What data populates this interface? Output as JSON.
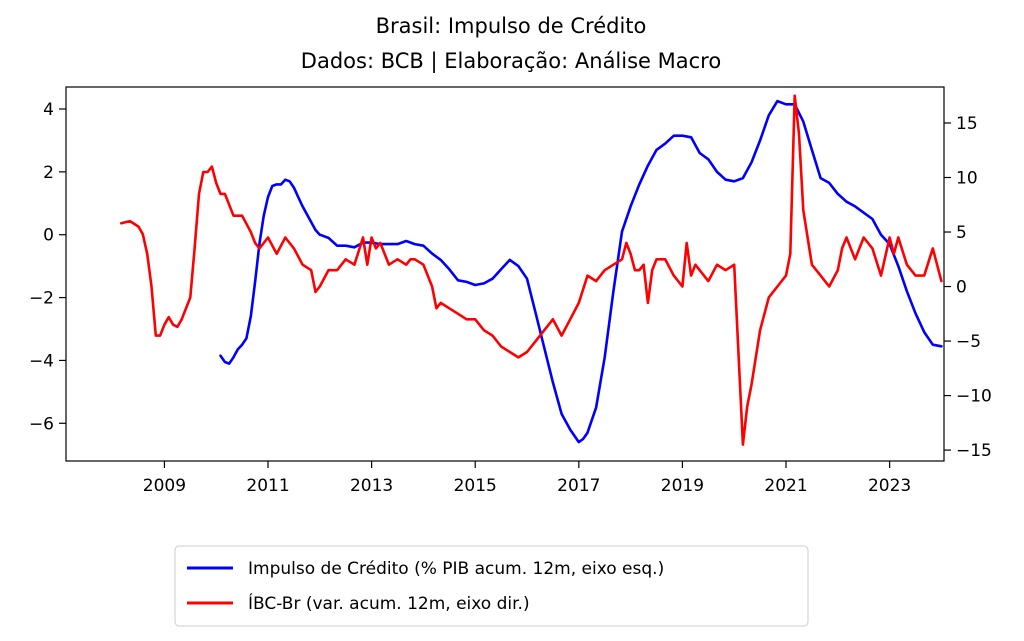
{
  "chart_data": {
    "type": "line",
    "title": "Brasil: Impulso de Crédito",
    "subtitle": "Dados: BCB | Elaboração: Análise Macro",
    "xlabel": "",
    "ylabel_left": "",
    "ylabel_right": "",
    "xlim": [
      2007.1,
      2024.05
    ],
    "ylim_left": [
      -7.2,
      4.7
    ],
    "ylim_right": [
      -16.0,
      18.3
    ],
    "x_ticks": [
      2009,
      2011,
      2013,
      2015,
      2017,
      2019,
      2021,
      2023
    ],
    "y_ticks_left": [
      4,
      2,
      0,
      -2,
      -4,
      -6
    ],
    "y_ticks_left_labels": [
      "4",
      "2",
      "0",
      "−2",
      "−4",
      "−6"
    ],
    "y_ticks_right": [
      15,
      10,
      5,
      0,
      -5,
      -10,
      -15
    ],
    "y_ticks_right_labels": [
      "15",
      "10",
      "5",
      "0",
      "−5",
      "−10",
      "−15"
    ],
    "grid": false,
    "legend_position": "bottom-center",
    "series": [
      {
        "name": "Impulso de Crédito (% PIB acum. 12m, eixo esq.)",
        "color": "#0000ff",
        "axis": "left",
        "x": [
          2010.083,
          2010.167,
          2010.25,
          2010.333,
          2010.417,
          2010.5,
          2010.583,
          2010.667,
          2010.75,
          2010.833,
          2010.917,
          2011.0,
          2011.083,
          2011.167,
          2011.25,
          2011.333,
          2011.417,
          2011.5,
          2011.583,
          2011.667,
          2011.75,
          2011.833,
          2011.917,
          2012.0,
          2012.167,
          2012.333,
          2012.5,
          2012.667,
          2012.833,
          2013.0,
          2013.167,
          2013.333,
          2013.5,
          2013.667,
          2013.833,
          2014.0,
          2014.167,
          2014.333,
          2014.5,
          2014.667,
          2014.833,
          2015.0,
          2015.167,
          2015.333,
          2015.5,
          2015.667,
          2015.833,
          2016.0,
          2016.167,
          2016.333,
          2016.5,
          2016.667,
          2016.833,
          2017.0,
          2017.083,
          2017.167,
          2017.333,
          2017.5,
          2017.667,
          2017.833,
          2018.0,
          2018.167,
          2018.333,
          2018.5,
          2018.667,
          2018.833,
          2019.0,
          2019.167,
          2019.333,
          2019.5,
          2019.667,
          2019.833,
          2020.0,
          2020.167,
          2020.333,
          2020.5,
          2020.667,
          2020.833,
          2021.0,
          2021.167,
          2021.333,
          2021.5,
          2021.667,
          2021.833,
          2022.0,
          2022.167,
          2022.333,
          2022.5,
          2022.667,
          2022.833,
          2023.0,
          2023.167,
          2023.333,
          2023.5,
          2023.667,
          2023.833,
          2024.0
        ],
        "y": [
          -3.85,
          -4.05,
          -4.1,
          -3.9,
          -3.65,
          -3.5,
          -3.3,
          -2.6,
          -1.5,
          -0.3,
          0.6,
          1.2,
          1.55,
          1.6,
          1.6,
          1.75,
          1.7,
          1.5,
          1.2,
          0.9,
          0.65,
          0.4,
          0.15,
          0.0,
          -0.1,
          -0.35,
          -0.35,
          -0.4,
          -0.25,
          -0.25,
          -0.3,
          -0.3,
          -0.3,
          -0.2,
          -0.3,
          -0.35,
          -0.6,
          -0.8,
          -1.1,
          -1.45,
          -1.5,
          -1.6,
          -1.55,
          -1.4,
          -1.1,
          -0.8,
          -1.0,
          -1.4,
          -2.5,
          -3.6,
          -4.7,
          -5.7,
          -6.2,
          -6.6,
          -6.5,
          -6.3,
          -5.5,
          -3.9,
          -1.8,
          0.1,
          0.9,
          1.6,
          2.2,
          2.7,
          2.9,
          3.15,
          3.15,
          3.1,
          2.6,
          2.4,
          2.0,
          1.75,
          1.7,
          1.8,
          2.3,
          3.0,
          3.8,
          4.25,
          4.15,
          4.15,
          3.6,
          2.7,
          1.8,
          1.65,
          1.3,
          1.05,
          0.9,
          0.7,
          0.5,
          0.0,
          -0.3,
          -1.0,
          -1.8,
          -2.5,
          -3.1,
          -3.5,
          -3.55
        ]
      },
      {
        "name": "ÍBC-Br (var. acum. 12m, eixo dir.)",
        "color": "#ff0000",
        "axis": "right",
        "x": [
          2008.167,
          2008.333,
          2008.5,
          2008.583,
          2008.667,
          2008.75,
          2008.833,
          2008.917,
          2009.0,
          2009.083,
          2009.167,
          2009.25,
          2009.333,
          2009.5,
          2009.583,
          2009.667,
          2009.75,
          2009.833,
          2009.917,
          2010.0,
          2010.083,
          2010.167,
          2010.25,
          2010.333,
          2010.5,
          2010.667,
          2010.75,
          2010.833,
          2011.0,
          2011.167,
          2011.333,
          2011.5,
          2011.667,
          2011.833,
          2011.917,
          2012.0,
          2012.167,
          2012.333,
          2012.5,
          2012.667,
          2012.833,
          2012.917,
          2013.0,
          2013.083,
          2013.167,
          2013.25,
          2013.333,
          2013.5,
          2013.667,
          2013.75,
          2013.833,
          2014.0,
          2014.167,
          2014.25,
          2014.333,
          2014.5,
          2014.667,
          2014.833,
          2015.0,
          2015.167,
          2015.333,
          2015.5,
          2015.667,
          2015.833,
          2016.0,
          2016.167,
          2016.333,
          2016.5,
          2016.667,
          2016.833,
          2017.0,
          2017.167,
          2017.333,
          2017.5,
          2017.667,
          2017.833,
          2017.917,
          2018.0,
          2018.083,
          2018.167,
          2018.25,
          2018.333,
          2018.417,
          2018.5,
          2018.667,
          2018.833,
          2019.0,
          2019.083,
          2019.167,
          2019.25,
          2019.333,
          2019.5,
          2019.667,
          2019.833,
          2020.0,
          2020.167,
          2020.25,
          2020.333,
          2020.5,
          2020.667,
          2020.833,
          2021.0,
          2021.083,
          2021.167,
          2021.25,
          2021.333,
          2021.5,
          2021.667,
          2021.833,
          2022.0,
          2022.083,
          2022.167,
          2022.333,
          2022.5,
          2022.667,
          2022.833,
          2023.0,
          2023.083,
          2023.167,
          2023.333,
          2023.5,
          2023.667,
          2023.833,
          2024.0
        ],
        "y": [
          5.8,
          6.0,
          5.5,
          4.8,
          3.0,
          0.0,
          -4.5,
          -4.5,
          -3.5,
          -2.8,
          -3.5,
          -3.7,
          -3.0,
          -1.0,
          3.5,
          8.5,
          10.5,
          10.5,
          11.0,
          9.5,
          8.5,
          8.5,
          7.5,
          6.5,
          6.5,
          5.0,
          4.0,
          3.5,
          4.5,
          3.0,
          4.5,
          3.5,
          2.0,
          1.5,
          -0.5,
          0.0,
          1.5,
          1.5,
          2.5,
          2.0,
          4.5,
          2.0,
          4.5,
          3.5,
          4.0,
          3.0,
          2.0,
          2.5,
          2.0,
          2.5,
          2.5,
          2.0,
          0.0,
          -2.0,
          -1.5,
          -2.0,
          -2.5,
          -3.0,
          -3.0,
          -4.0,
          -4.5,
          -5.5,
          -6.0,
          -6.5,
          -6.0,
          -5.0,
          -4.0,
          -3.0,
          -4.5,
          -3.0,
          -1.5,
          1.0,
          0.5,
          1.5,
          2.0,
          2.5,
          4.0,
          3.0,
          1.5,
          1.5,
          2.0,
          -1.5,
          1.5,
          2.5,
          2.5,
          1.0,
          0.0,
          4.0,
          1.0,
          2.0,
          1.5,
          0.5,
          2.0,
          1.5,
          2.0,
          -14.5,
          -11.0,
          -9.0,
          -4.0,
          -1.0,
          0.0,
          1.0,
          3.0,
          17.5,
          14.0,
          7.0,
          2.0,
          1.0,
          0.0,
          1.5,
          3.5,
          4.5,
          2.5,
          4.5,
          3.5,
          1.0,
          4.5,
          3.0,
          4.5,
          2.0,
          1.0,
          1.0,
          3.5,
          0.5
        ]
      }
    ]
  }
}
